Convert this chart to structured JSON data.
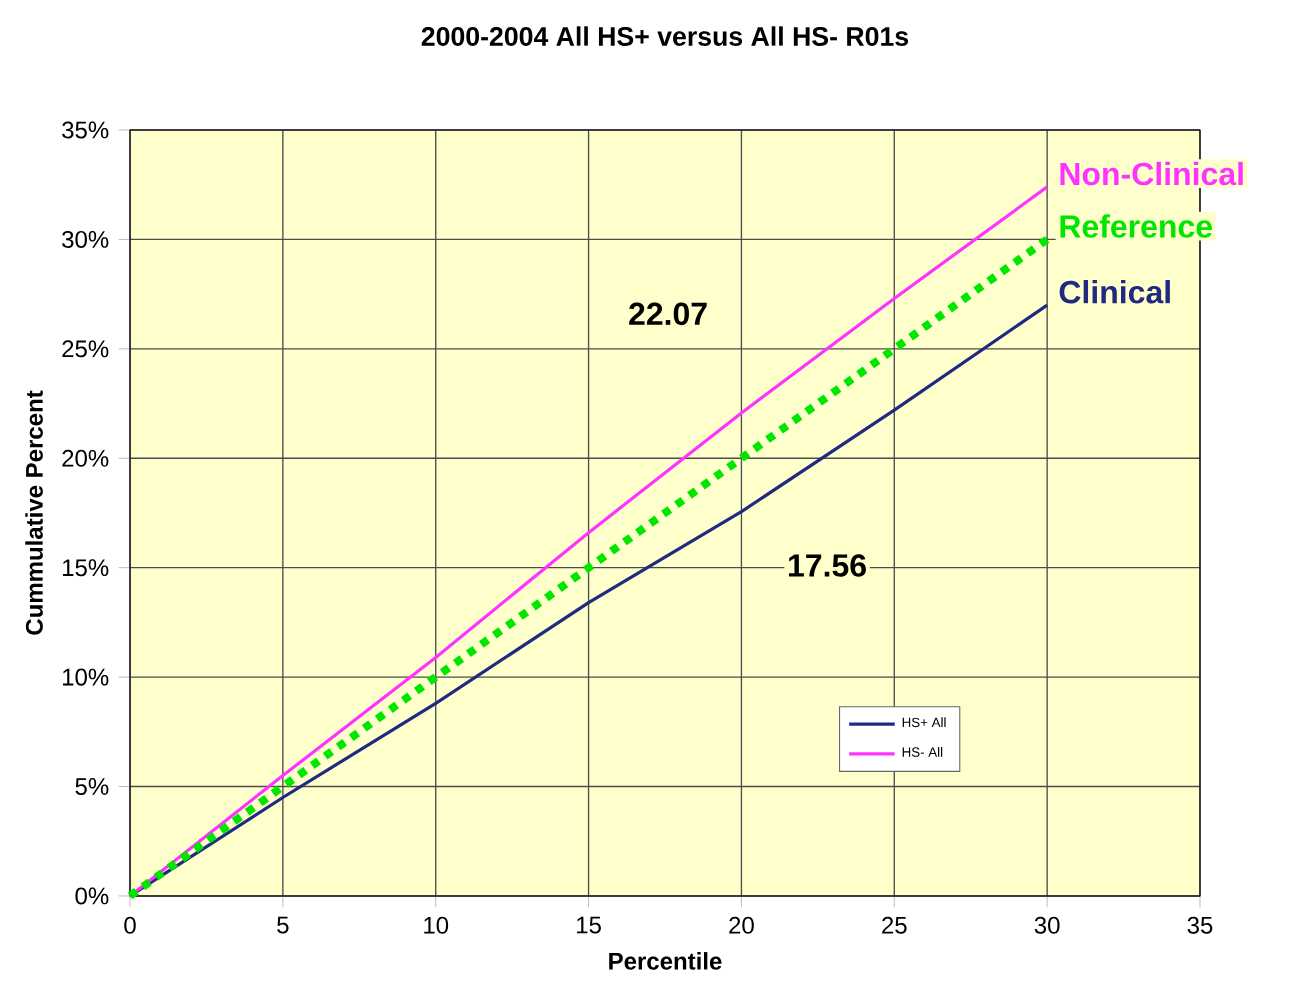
{
  "chart_data": {
    "type": "line",
    "title": "2000-2004 All HS+ versus All HS- R01s",
    "xlabel": "Percentile",
    "ylabel": "Cummulative Percent",
    "xlim": [
      0,
      35
    ],
    "xticks": [
      0,
      5,
      10,
      15,
      20,
      25,
      30,
      35
    ],
    "ylim": [
      0,
      35
    ],
    "yticks": [
      {
        "value": 0,
        "label": "0%"
      },
      {
        "value": 5,
        "label": "5%"
      },
      {
        "value": 10,
        "label": "10%"
      },
      {
        "value": 15,
        "label": "15%"
      },
      {
        "value": 20,
        "label": "20%"
      },
      {
        "value": 25,
        "label": "25%"
      },
      {
        "value": 30,
        "label": "30%"
      },
      {
        "value": 35,
        "label": "35%"
      }
    ],
    "x": [
      0,
      5,
      10,
      15,
      20,
      25,
      30
    ],
    "series": [
      {
        "name": "HS+ All",
        "color": "#1f2a80",
        "values": [
          0,
          4.5,
          8.8,
          13.4,
          17.56,
          22.2,
          27.0
        ]
      },
      {
        "name": "HS- All",
        "color": "#ff33ff",
        "values": [
          0,
          5.5,
          10.9,
          16.6,
          22.07,
          27.3,
          32.4
        ]
      },
      {
        "color": "#00e600",
        "line_style": "dotted",
        "values": [
          0,
          5,
          10,
          15,
          20,
          25,
          30
        ]
      }
    ],
    "annotations": [
      "22.07",
      "17.56",
      "Clinical",
      "Non-Clinical",
      "Reference"
    ],
    "grid": true,
    "legend": "bottom right",
    "marker": "none"
  }
}
